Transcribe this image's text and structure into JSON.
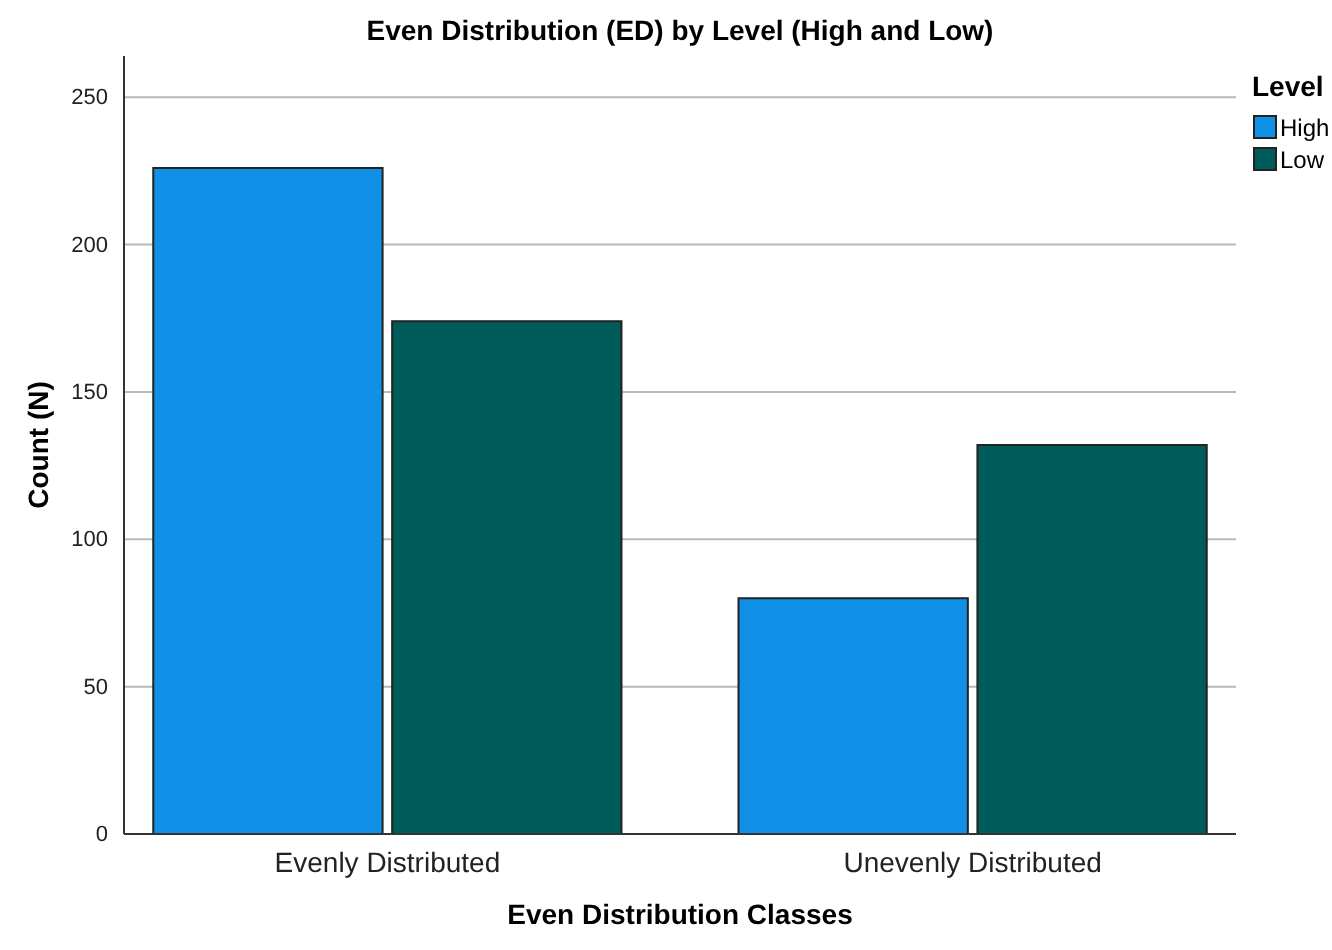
{
  "chart_data": {
    "type": "bar",
    "title": "Even Distribution (ED) by Level (High and Low)",
    "xlabel": "Even Distribution Classes",
    "ylabel": "Count (N)",
    "legend_title": "Level",
    "categories": [
      "Evenly Distributed",
      "Unevenly Distributed"
    ],
    "series": [
      {
        "name": "High",
        "color": "#1190e8",
        "values": [
          226,
          80
        ]
      },
      {
        "name": "Low",
        "color": "#005c5a",
        "values": [
          174,
          132
        ]
      }
    ],
    "ylim": [
      0,
      264
    ],
    "yticks": [
      0,
      50,
      100,
      150,
      200,
      250
    ],
    "grid": "y",
    "legend": "top right"
  }
}
